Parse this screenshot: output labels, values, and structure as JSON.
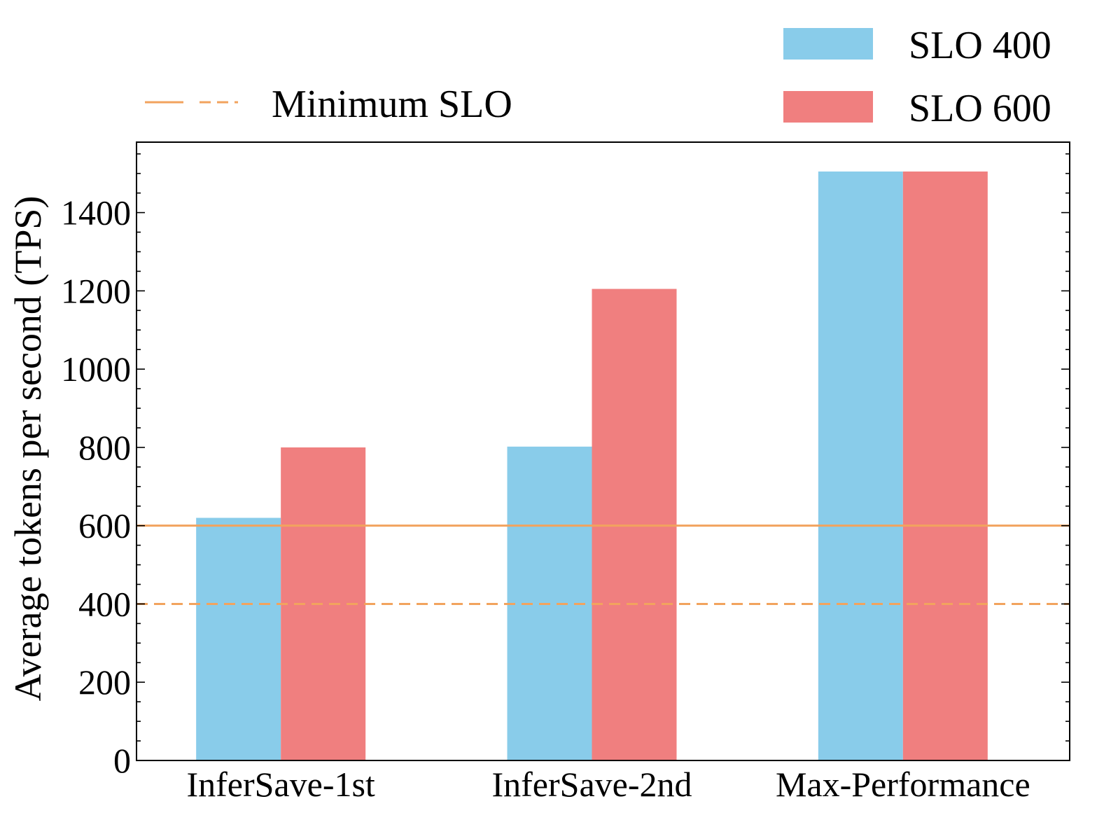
{
  "chart_data": {
    "type": "bar",
    "title": "",
    "xlabel": "",
    "ylabel": "Average tokens per second (TPS)",
    "categories": [
      "InferSave-1st",
      "InferSave-2nd",
      "Max-Performance"
    ],
    "series": [
      {
        "name": "SLO 400",
        "values": [
          620,
          802,
          1505
        ],
        "color": "#89CCEA"
      },
      {
        "name": "SLO 600",
        "values": [
          800,
          1205,
          1505
        ],
        "color": "#F07F7F"
      }
    ],
    "ylim": [
      0,
      1580
    ],
    "yticks": [
      0,
      200,
      400,
      600,
      800,
      1000,
      1200,
      1400
    ],
    "minor_tick_step": 50,
    "grid": false,
    "reference_lines": [
      {
        "value": 600,
        "style": "solid",
        "color": "#F2A35E"
      },
      {
        "value": 400,
        "style": "dashed",
        "color": "#F2A35E"
      }
    ],
    "reference_legend_label": "Minimum SLO",
    "legend": {
      "series_placement": "top-right",
      "reference_placement": "top-left"
    }
  }
}
